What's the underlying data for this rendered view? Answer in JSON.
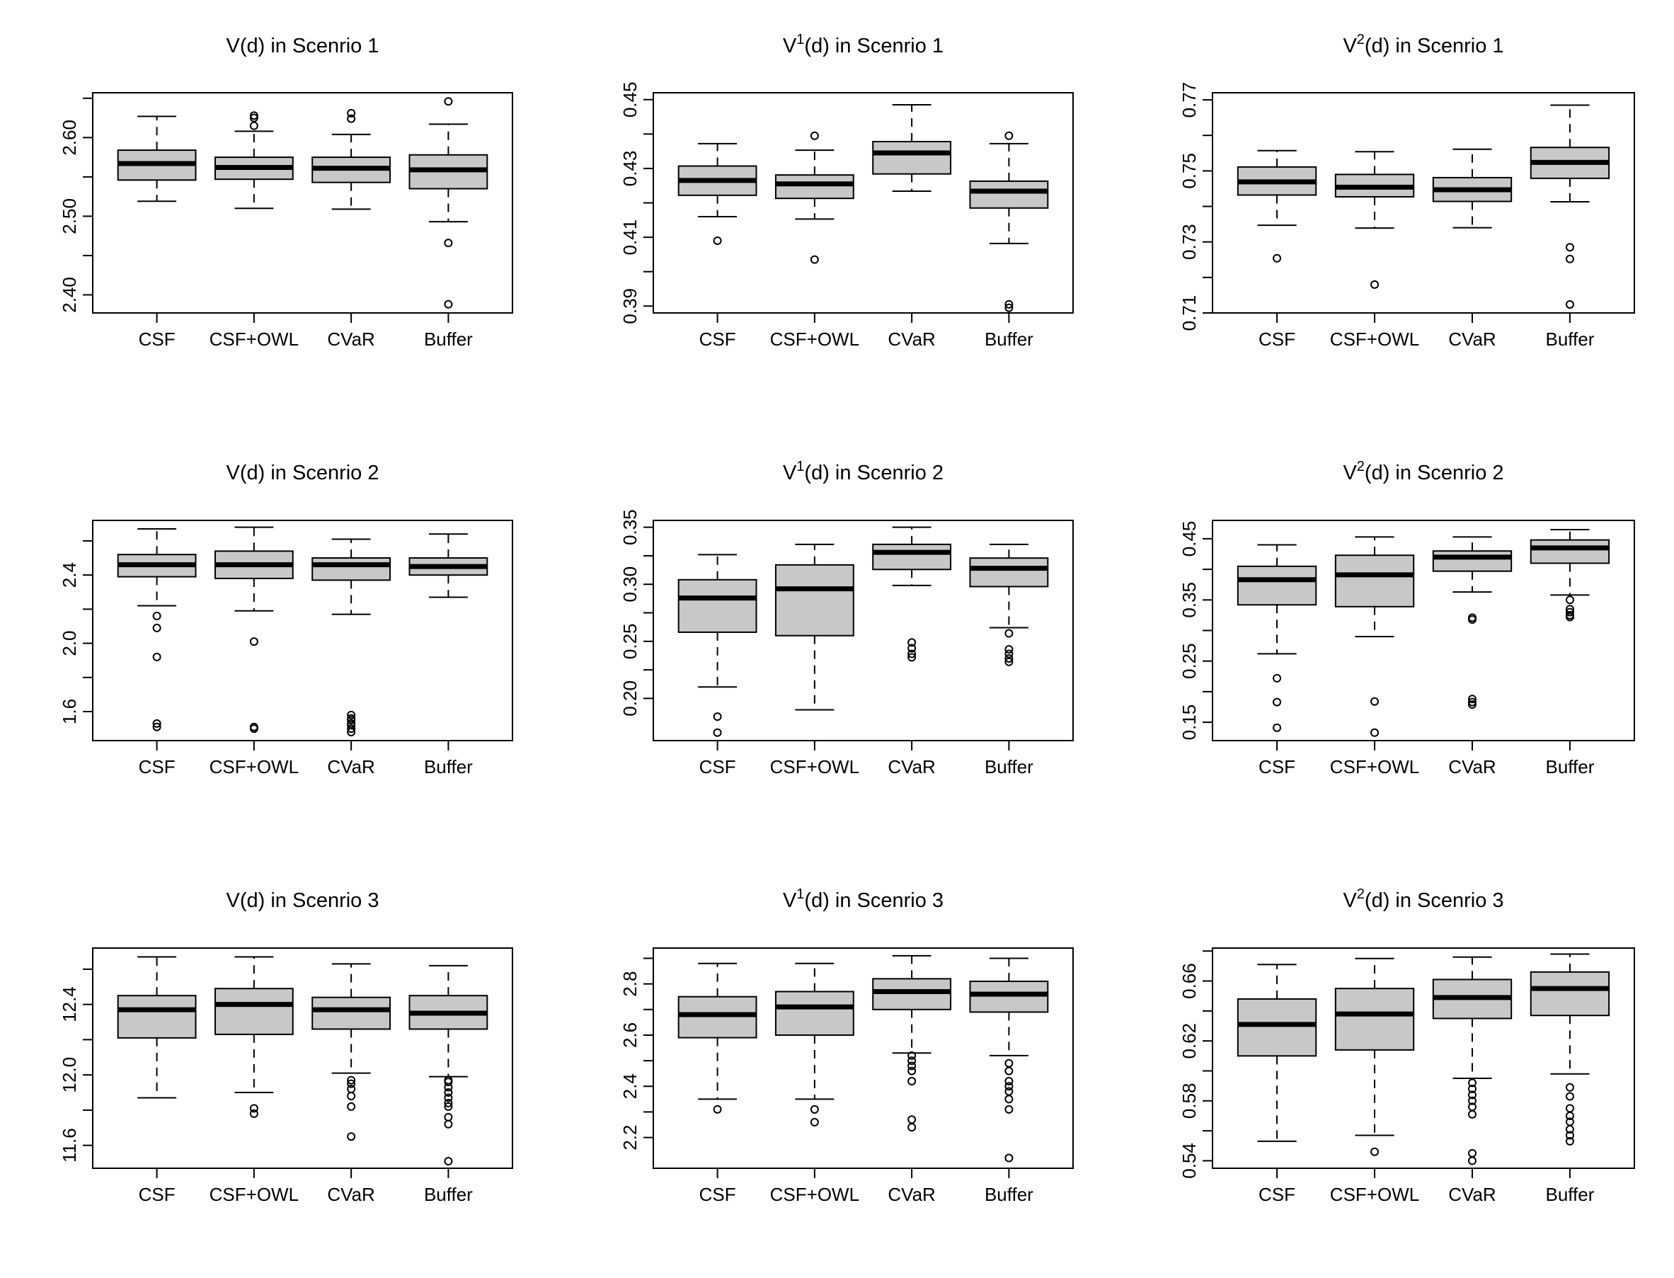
{
  "figure": {
    "group_labels": [
      "CSF",
      "CSF+OWL",
      "CVaR",
      "Buffer"
    ],
    "box_fill": "#c8c8c8",
    "line_color": "#000000"
  },
  "chart_data": [
    {
      "type": "boxplot",
      "title_base": "V(d) in Scenrio 1",
      "title_sup": "",
      "title_tail": "",
      "ylim": [
        2.377,
        2.657
      ],
      "yticks": [
        2.4,
        2.5,
        2.6
      ],
      "ytick_labels": [
        "2.40",
        "2.50",
        "2.60"
      ],
      "categories": [
        "CSF",
        "CSF+OWL",
        "CVaR",
        "Buffer"
      ],
      "boxes": [
        {
          "whisker_low": 2.519,
          "q1": 2.546,
          "median": 2.567,
          "q3": 2.584,
          "whisker_high": 2.627,
          "outliers": []
        },
        {
          "whisker_low": 2.51,
          "q1": 2.547,
          "median": 2.562,
          "q3": 2.575,
          "whisker_high": 2.608,
          "outliers": [
            2.615,
            2.625,
            2.628
          ]
        },
        {
          "whisker_low": 2.509,
          "q1": 2.543,
          "median": 2.561,
          "q3": 2.575,
          "whisker_high": 2.604,
          "outliers": [
            2.624,
            2.631
          ]
        },
        {
          "whisker_low": 2.493,
          "q1": 2.535,
          "median": 2.559,
          "q3": 2.578,
          "whisker_high": 2.617,
          "outliers": [
            2.646,
            2.466,
            2.388
          ]
        }
      ]
    },
    {
      "type": "boxplot",
      "title_base": "V",
      "title_sup": "1",
      "title_tail": "(d) in Scenrio 1",
      "ylim": [
        0.388,
        0.452
      ],
      "yticks": [
        0.39,
        0.41,
        0.43,
        0.45
      ],
      "ytick_labels": [
        "0.39",
        "0.41",
        "0.43",
        "0.45"
      ],
      "categories": [
        "CSF",
        "CSF+OWL",
        "CVaR",
        "Buffer"
      ],
      "boxes": [
        {
          "whisker_low": 0.416,
          "q1": 0.4222,
          "median": 0.4265,
          "q3": 0.4307,
          "whisker_high": 0.4372,
          "outliers": [
            0.409
          ]
        },
        {
          "whisker_low": 0.4153,
          "q1": 0.4213,
          "median": 0.4255,
          "q3": 0.4281,
          "whisker_high": 0.4353,
          "outliers": [
            0.4395,
            0.4035
          ]
        },
        {
          "whisker_low": 0.4234,
          "q1": 0.4284,
          "median": 0.4345,
          "q3": 0.4378,
          "whisker_high": 0.4485,
          "outliers": []
        },
        {
          "whisker_low": 0.4082,
          "q1": 0.4185,
          "median": 0.4234,
          "q3": 0.4263,
          "whisker_high": 0.4372,
          "outliers": [
            0.4395,
            0.3905,
            0.3895
          ]
        }
      ]
    },
    {
      "type": "boxplot",
      "title_base": "V",
      "title_sup": "2",
      "title_tail": "(d) in Scenrio 1",
      "ylim": [
        0.71,
        0.772
      ],
      "yticks": [
        0.71,
        0.73,
        0.75,
        0.77
      ],
      "ytick_labels": [
        "0.71",
        "0.73",
        "0.75",
        "0.77"
      ],
      "categories": [
        "CSF",
        "CSF+OWL",
        "CVaR",
        "Buffer"
      ],
      "boxes": [
        {
          "whisker_low": 0.7347,
          "q1": 0.7432,
          "median": 0.7469,
          "q3": 0.7511,
          "whisker_high": 0.7557,
          "outliers": [
            0.7254
          ]
        },
        {
          "whisker_low": 0.7339,
          "q1": 0.7427,
          "median": 0.7454,
          "q3": 0.749,
          "whisker_high": 0.7554,
          "outliers": [
            0.718
          ]
        },
        {
          "whisker_low": 0.734,
          "q1": 0.7414,
          "median": 0.7447,
          "q3": 0.7481,
          "whisker_high": 0.7561,
          "outliers": []
        },
        {
          "whisker_low": 0.7413,
          "q1": 0.7479,
          "median": 0.7524,
          "q3": 0.7566,
          "whisker_high": 0.7685,
          "outliers": [
            0.7285,
            0.7252,
            0.7124
          ]
        }
      ]
    },
    {
      "type": "boxplot",
      "title_base": "V(d) in Scenrio 2",
      "title_sup": "",
      "title_tail": "",
      "ylim": [
        1.43,
        2.72
      ],
      "yticks": [
        1.6,
        2.0,
        2.4
      ],
      "ytick_labels": [
        "1.6",
        "2.0",
        "2.4"
      ],
      "categories": [
        "CSF",
        "CSF+OWL",
        "CVaR",
        "Buffer"
      ],
      "boxes": [
        {
          "whisker_low": 2.22,
          "q1": 2.39,
          "median": 2.46,
          "q3": 2.52,
          "whisker_high": 2.67,
          "outliers": [
            2.16,
            2.09,
            1.92,
            1.53,
            1.51
          ]
        },
        {
          "whisker_low": 2.19,
          "q1": 2.38,
          "median": 2.46,
          "q3": 2.54,
          "whisker_high": 2.68,
          "outliers": [
            2.01,
            1.51,
            1.5
          ]
        },
        {
          "whisker_low": 2.17,
          "q1": 2.37,
          "median": 2.46,
          "q3": 2.5,
          "whisker_high": 2.61,
          "outliers": [
            1.58,
            1.56,
            1.55,
            1.53,
            1.52,
            1.5,
            1.48
          ]
        },
        {
          "whisker_low": 2.27,
          "q1": 2.4,
          "median": 2.45,
          "q3": 2.5,
          "whisker_high": 2.64,
          "outliers": []
        }
      ]
    },
    {
      "type": "boxplot",
      "title_base": "V",
      "title_sup": "1",
      "title_tail": "(d) in Scenrio 2",
      "ylim": [
        0.163,
        0.356
      ],
      "yticks": [
        0.2,
        0.25,
        0.3,
        0.35
      ],
      "ytick_labels": [
        "0.20",
        "0.25",
        "0.30",
        "0.35"
      ],
      "categories": [
        "CSF",
        "CSF+OWL",
        "CVaR",
        "Buffer"
      ],
      "boxes": [
        {
          "whisker_low": 0.21,
          "q1": 0.258,
          "median": 0.288,
          "q3": 0.304,
          "whisker_high": 0.326,
          "outliers": [
            0.184,
            0.17
          ]
        },
        {
          "whisker_low": 0.19,
          "q1": 0.255,
          "median": 0.296,
          "q3": 0.317,
          "whisker_high": 0.335,
          "outliers": []
        },
        {
          "whisker_low": 0.299,
          "q1": 0.313,
          "median": 0.328,
          "q3": 0.335,
          "whisker_high": 0.35,
          "outliers": [
            0.249,
            0.244,
            0.239,
            0.236
          ]
        },
        {
          "whisker_low": 0.262,
          "q1": 0.298,
          "median": 0.314,
          "q3": 0.323,
          "whisker_high": 0.335,
          "outliers": [
            0.257,
            0.243,
            0.239,
            0.235,
            0.232
          ]
        }
      ]
    },
    {
      "type": "boxplot",
      "title_base": "V",
      "title_sup": "2",
      "title_tail": "(d) in Scenrio 2",
      "ylim": [
        0.12,
        0.48
      ],
      "yticks": [
        0.15,
        0.25,
        0.35,
        0.45
      ],
      "ytick_labels": [
        "0.15",
        "0.25",
        "0.35",
        "0.45"
      ],
      "categories": [
        "CSF",
        "CSF+OWL",
        "CVaR",
        "Buffer"
      ],
      "boxes": [
        {
          "whisker_low": 0.262,
          "q1": 0.342,
          "median": 0.383,
          "q3": 0.405,
          "whisker_high": 0.44,
          "outliers": [
            0.222,
            0.183,
            0.141
          ]
        },
        {
          "whisker_low": 0.29,
          "q1": 0.339,
          "median": 0.391,
          "q3": 0.423,
          "whisker_high": 0.453,
          "outliers": [
            0.184,
            0.133
          ]
        },
        {
          "whisker_low": 0.363,
          "q1": 0.397,
          "median": 0.42,
          "q3": 0.43,
          "whisker_high": 0.453,
          "outliers": [
            0.321,
            0.318,
            0.188,
            0.183,
            0.179
          ]
        },
        {
          "whisker_low": 0.358,
          "q1": 0.41,
          "median": 0.435,
          "q3": 0.448,
          "whisker_high": 0.465,
          "outliers": [
            0.35,
            0.335,
            0.33,
            0.325,
            0.322
          ]
        }
      ]
    },
    {
      "type": "boxplot",
      "title_base": "V(d) in Scenrio 3",
      "title_sup": "",
      "title_tail": "",
      "ylim": [
        11.47,
        12.72
      ],
      "yticks": [
        11.6,
        12.0,
        12.4
      ],
      "ytick_labels": [
        "11.6",
        "12.0",
        "12.4"
      ],
      "categories": [
        "CSF",
        "CSF+OWL",
        "CVaR",
        "Buffer"
      ],
      "boxes": [
        {
          "whisker_low": 11.87,
          "q1": 12.21,
          "median": 12.37,
          "q3": 12.45,
          "whisker_high": 12.67,
          "outliers": []
        },
        {
          "whisker_low": 11.9,
          "q1": 12.23,
          "median": 12.4,
          "q3": 12.49,
          "whisker_high": 12.67,
          "outliers": [
            11.81,
            11.78
          ]
        },
        {
          "whisker_low": 12.01,
          "q1": 12.26,
          "median": 12.37,
          "q3": 12.44,
          "whisker_high": 12.63,
          "outliers": [
            11.97,
            11.95,
            11.92,
            11.88,
            11.82,
            11.65
          ]
        },
        {
          "whisker_low": 11.99,
          "q1": 12.26,
          "median": 12.35,
          "q3": 12.45,
          "whisker_high": 12.62,
          "outliers": [
            11.97,
            11.96,
            11.93,
            11.9,
            11.87,
            11.84,
            11.82,
            11.76,
            11.72,
            11.51
          ]
        }
      ]
    },
    {
      "type": "boxplot",
      "title_base": "V",
      "title_sup": "1",
      "title_tail": "(d) in Scenrio 3",
      "ylim": [
        2.08,
        2.94
      ],
      "yticks": [
        2.2,
        2.4,
        2.6,
        2.8
      ],
      "ytick_labels": [
        "2.2",
        "2.4",
        "2.6",
        "2.8"
      ],
      "categories": [
        "CSF",
        "CSF+OWL",
        "CVaR",
        "Buffer"
      ],
      "boxes": [
        {
          "whisker_low": 2.35,
          "q1": 2.59,
          "median": 2.68,
          "q3": 2.75,
          "whisker_high": 2.88,
          "outliers": [
            2.31
          ]
        },
        {
          "whisker_low": 2.35,
          "q1": 2.6,
          "median": 2.71,
          "q3": 2.77,
          "whisker_high": 2.88,
          "outliers": [
            2.31,
            2.26
          ]
        },
        {
          "whisker_low": 2.53,
          "q1": 2.7,
          "median": 2.77,
          "q3": 2.82,
          "whisker_high": 2.91,
          "outliers": [
            2.52,
            2.5,
            2.48,
            2.46,
            2.42,
            2.27,
            2.24
          ]
        },
        {
          "whisker_low": 2.52,
          "q1": 2.69,
          "median": 2.76,
          "q3": 2.81,
          "whisker_high": 2.9,
          "outliers": [
            2.49,
            2.46,
            2.42,
            2.4,
            2.38,
            2.35,
            2.31,
            2.12
          ]
        }
      ]
    },
    {
      "type": "boxplot",
      "title_base": "V",
      "title_sup": "2",
      "title_tail": "(d) in Scenrio 3",
      "ylim": [
        0.535,
        0.682
      ],
      "yticks": [
        0.54,
        0.58,
        0.62,
        0.66
      ],
      "ytick_labels": [
        "0.54",
        "0.58",
        "0.62",
        "0.66"
      ],
      "categories": [
        "CSF",
        "CSF+OWL",
        "CVaR",
        "Buffer"
      ],
      "boxes": [
        {
          "whisker_low": 0.553,
          "q1": 0.61,
          "median": 0.631,
          "q3": 0.648,
          "whisker_high": 0.671,
          "outliers": []
        },
        {
          "whisker_low": 0.557,
          "q1": 0.614,
          "median": 0.638,
          "q3": 0.655,
          "whisker_high": 0.675,
          "outliers": [
            0.546
          ]
        },
        {
          "whisker_low": 0.595,
          "q1": 0.635,
          "median": 0.649,
          "q3": 0.661,
          "whisker_high": 0.676,
          "outliers": [
            0.592,
            0.588,
            0.584,
            0.58,
            0.576,
            0.571,
            0.545,
            0.54
          ]
        },
        {
          "whisker_low": 0.598,
          "q1": 0.637,
          "median": 0.655,
          "q3": 0.666,
          "whisker_high": 0.678,
          "outliers": [
            0.589,
            0.583,
            0.575,
            0.57,
            0.566,
            0.561,
            0.557,
            0.553
          ]
        }
      ]
    }
  ]
}
